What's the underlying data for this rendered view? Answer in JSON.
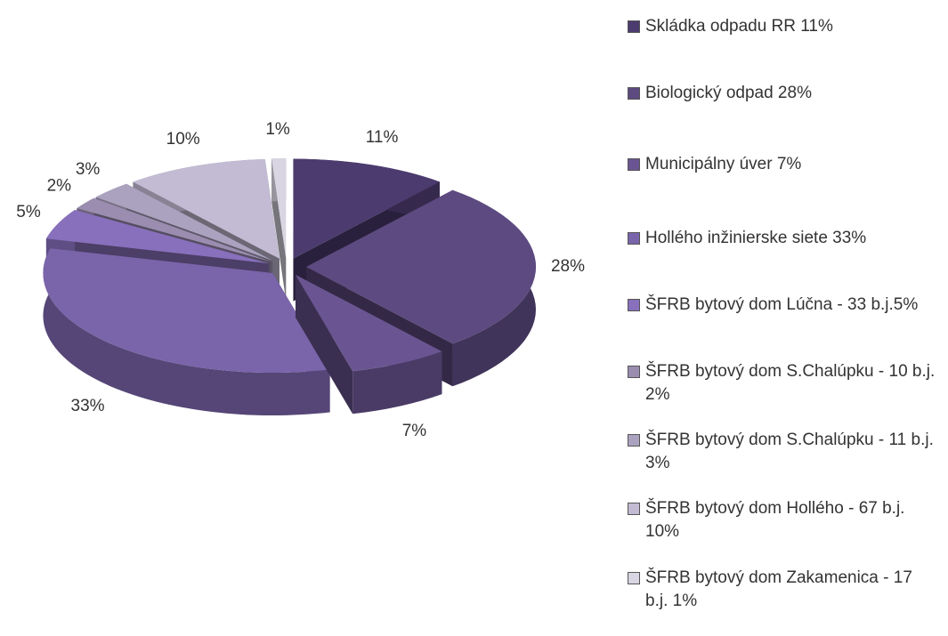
{
  "chart_data": {
    "type": "pie",
    "categories": [
      "Skládka odpadu RR 11%",
      "Biologický odpad 28%",
      "Municipálny úver 7%",
      "Hollého inžinierske siete 33%",
      "ŠFRB bytový dom Lúčna - 33 b.j.5%",
      "ŠFRB bytový dom S.Chalúpku - 10 b.j. 2%",
      "ŠFRB bytový dom S.Chalúpku - 11 b.j. 3%",
      "ŠFRB bytový dom Hollého - 67 b.j. 10%",
      "ŠFRB bytový dom Zakamenica - 17 b.j. 1%"
    ],
    "values": [
      11,
      28,
      7,
      33,
      5,
      2,
      3,
      10,
      1
    ],
    "value_labels": [
      "11%",
      "28%",
      "7%",
      "33%",
      "5%",
      "2%",
      "3%",
      "10%",
      "1%"
    ],
    "colors": [
      "#4b3b6e",
      "#5d4a80",
      "#6a5592",
      "#7a64aa",
      "#8870bc",
      "#9a8db0",
      "#aba2bf",
      "#c2bbd3",
      "#d9d5e2"
    ],
    "legend": "right"
  }
}
